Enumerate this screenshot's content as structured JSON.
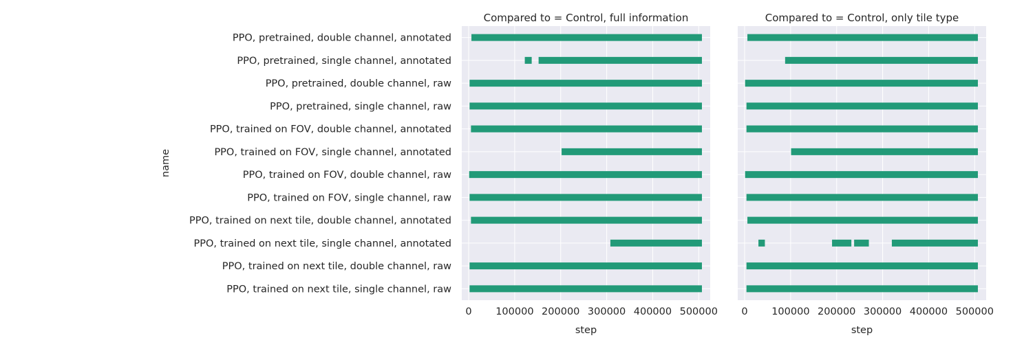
{
  "chart_data": {
    "type": "bar",
    "ylabel": "name",
    "xlabel": "step",
    "xlim": [
      -15000,
      525000
    ],
    "xticks": [
      0,
      100000,
      200000,
      300000,
      400000,
      500000
    ],
    "grid": true,
    "color": "#229a78",
    "categories": [
      "PPO, pretrained, double channel, annotated",
      "PPO, pretrained, single channel, annotated",
      "PPO, pretrained, double channel, raw",
      "PPO, pretrained, single channel, raw",
      "PPO, trained on FOV, double channel, annotated",
      "PPO, trained on FOV, single channel, annotated",
      "PPO, trained on FOV, double channel, raw",
      "PPO, trained on FOV, single channel, raw",
      "PPO, trained on next tile, double channel, annotated",
      "PPO, trained on next tile, single channel, annotated",
      "PPO, trained on next tile, double channel, raw",
      "PPO, trained on next tile, single channel, raw"
    ],
    "panels": [
      {
        "title": "Compared to = Control, full information",
        "intervals": [
          [
            [
              6000,
              507000
            ]
          ],
          [
            [
              122000,
              137000
            ],
            [
              152000,
              507000
            ]
          ],
          [
            [
              2000,
              507000
            ]
          ],
          [
            [
              2000,
              507000
            ]
          ],
          [
            [
              5000,
              507000
            ]
          ],
          [
            [
              202000,
              507000
            ]
          ],
          [
            [
              1000,
              507000
            ]
          ],
          [
            [
              2000,
              507000
            ]
          ],
          [
            [
              5000,
              507000
            ]
          ],
          [
            [
              308000,
              507000
            ]
          ],
          [
            [
              2000,
              507000
            ]
          ],
          [
            [
              2000,
              507000
            ]
          ]
        ]
      },
      {
        "title": "Compared to = Control, only tile type",
        "intervals": [
          [
            [
              6000,
              507000
            ]
          ],
          [
            [
              88000,
              507000
            ]
          ],
          [
            [
              1000,
              507000
            ]
          ],
          [
            [
              4000,
              507000
            ]
          ],
          [
            [
              4000,
              507000
            ]
          ],
          [
            [
              101000,
              507000
            ]
          ],
          [
            [
              1000,
              507000
            ]
          ],
          [
            [
              4000,
              507000
            ]
          ],
          [
            [
              6000,
              507000
            ]
          ],
          [
            [
              30000,
              44000
            ],
            [
              190000,
              232000
            ],
            [
              238000,
              270000
            ],
            [
              320000,
              507000
            ]
          ],
          [
            [
              4000,
              507000
            ]
          ],
          [
            [
              4000,
              507000
            ]
          ]
        ]
      }
    ]
  }
}
